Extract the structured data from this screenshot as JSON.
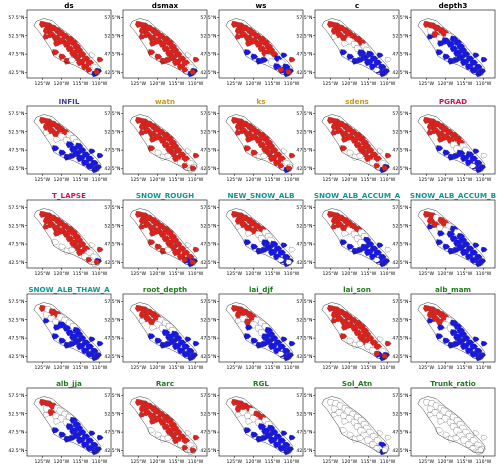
{
  "colors": {
    "black": "#000000",
    "purple": "#3f3f9a",
    "orange": "#c99a1a",
    "crimson": "#d6125a",
    "teal": "#13948f",
    "green": "#1f7a1f",
    "increase": "#e0201b",
    "decrease": "#1616e6"
  },
  "chart_data": {
    "type": "map",
    "grid": {
      "rows": 5,
      "cols": 5
    },
    "xticks": [
      "125°W",
      "120°W",
      "115°W",
      "110°W"
    ],
    "xtick_values": [
      -125,
      -120,
      -115,
      -110
    ],
    "yticks": [
      "57.5°N",
      "52.5°N",
      "47.5°N",
      "42.5°N"
    ],
    "ytick_values": [
      57.5,
      52.5,
      47.5,
      42.5
    ],
    "xlim": [
      -129,
      -107
    ],
    "ylim": [
      41,
      59.5
    ],
    "panels": [
      {
        "title": "ds",
        "color": "black",
        "red": 0.85,
        "blue": 0.1
      },
      {
        "title": "dsmax",
        "color": "black",
        "red": 0.85,
        "blue": 0.1
      },
      {
        "title": "ws",
        "color": "black",
        "red": 0.6,
        "blue": 0.35
      },
      {
        "title": "c",
        "color": "black",
        "red": 0.3,
        "blue": 0.55
      },
      {
        "title": "depth3",
        "color": "black",
        "red": 0.1,
        "blue": 0.85
      },
      {
        "title": "INFIL",
        "color": "purple",
        "red": 0.15,
        "blue": 0.7
      },
      {
        "title": "watn",
        "color": "orange",
        "red": 0.8,
        "blue": 0.05
      },
      {
        "title": "ks",
        "color": "orange",
        "red": 0.85,
        "blue": 0.05
      },
      {
        "title": "sdens",
        "color": "orange",
        "red": 0.8,
        "blue": 0.1
      },
      {
        "title": "PGRAD",
        "color": "crimson",
        "red": 0.35,
        "blue": 0.55
      },
      {
        "title": "T_LAPSE",
        "color": "crimson",
        "red": 0.75,
        "blue": 0.1
      },
      {
        "title": "SNOW_ROUGH",
        "color": "teal",
        "red": 0.85,
        "blue": 0.1
      },
      {
        "title": "NEW_SNOW_ALB",
        "color": "teal",
        "red": 0.25,
        "blue": 0.55
      },
      {
        "title": "SNOW_ALB_ACCUM_A",
        "color": "teal",
        "red": 0.2,
        "blue": 0.6
      },
      {
        "title": "SNOW_ALB_ACCUM_B",
        "color": "teal",
        "red": 0.1,
        "blue": 0.8
      },
      {
        "title": "SNOW_ALB_THAW_A",
        "color": "teal",
        "red": 0.1,
        "blue": 0.8
      },
      {
        "title": "root_depth",
        "color": "green",
        "red": 0.15,
        "blue": 0.7
      },
      {
        "title": "lai_djf",
        "color": "green",
        "red": 0.15,
        "blue": 0.65
      },
      {
        "title": "lai_son",
        "color": "green",
        "red": 0.75,
        "blue": 0.1
      },
      {
        "title": "alb_mam",
        "color": "green",
        "red": 0.1,
        "blue": 0.8
      },
      {
        "title": "alb_jja",
        "color": "green",
        "red": 0.1,
        "blue": 0.75
      },
      {
        "title": "Rarc",
        "color": "green",
        "red": 0.8,
        "blue": 0.05
      },
      {
        "title": "RGL",
        "color": "green",
        "red": 0.15,
        "blue": 0.7
      },
      {
        "title": "Sol_Atn",
        "color": "green",
        "red": 0.0,
        "blue": 0.15
      },
      {
        "title": "Trunk_ratio",
        "color": "green",
        "red": 0.0,
        "blue": 0.05
      }
    ]
  }
}
